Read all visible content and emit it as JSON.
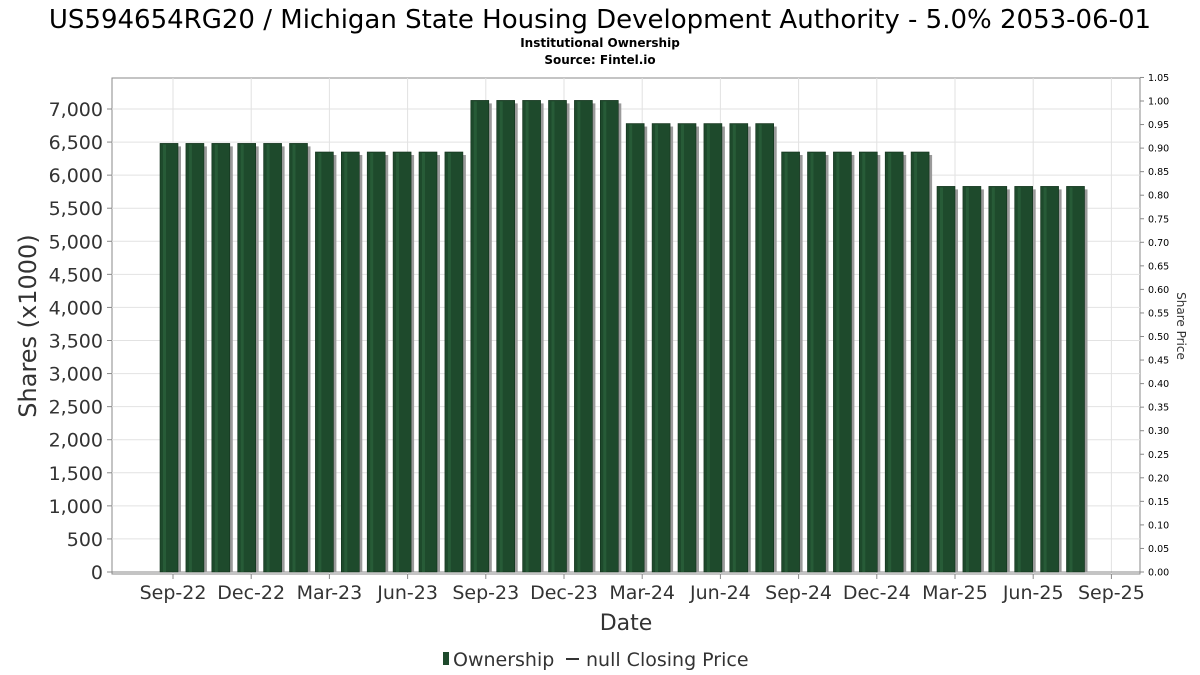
{
  "chart_data": {
    "type": "bar",
    "title": "US594654RG20 / Michigan State Housing Development Authority - 5.0% 2053-06-01",
    "subtitle": "Institutional Ownership",
    "source": "Source: Fintel.io",
    "xlabel": "Date",
    "ylabel": "Shares (x1000)",
    "y2label": "Share Price",
    "ylim": [
      0,
      7250
    ],
    "y2lim": [
      0,
      1.05
    ],
    "y_ticks": [
      0,
      500,
      1000,
      1500,
      2000,
      2500,
      3000,
      3500,
      4000,
      4500,
      5000,
      5500,
      6000,
      6500,
      7000
    ],
    "y_tick_labels": [
      "0",
      "500",
      "1,000",
      "1,500",
      "2,000",
      "2,500",
      "3,000",
      "3,500",
      "4,000",
      "4,500",
      "5,000",
      "5,500",
      "6,000",
      "6,500",
      "7,000"
    ],
    "y2_ticks": [
      0,
      0.05,
      0.1,
      0.15,
      0.2,
      0.25,
      0.3,
      0.35,
      0.4,
      0.45,
      0.5,
      0.55,
      0.6,
      0.65,
      0.7,
      0.75,
      0.8,
      0.85,
      0.9,
      0.95,
      1.0,
      1.05
    ],
    "y2_tick_labels": [
      "0.00",
      "0.05",
      "0.10",
      "0.15",
      "0.20",
      "0.25",
      "0.30",
      "0.35",
      "0.40",
      "0.45",
      "0.50",
      "0.55",
      "0.60",
      "0.65",
      "0.70",
      "0.75",
      "0.80",
      "0.85",
      "0.90",
      "0.95",
      "1.00",
      "1.05"
    ],
    "x_tick_labels": [
      "Sep-22",
      "Dec-22",
      "Mar-23",
      "Jun-23",
      "Sep-23",
      "Dec-23",
      "Mar-24",
      "Jun-24",
      "Sep-24",
      "Dec-24",
      "Mar-25",
      "Jun-25",
      "Sep-25"
    ],
    "grid": true,
    "legend_position": "bottom",
    "series": [
      {
        "name": "Ownership",
        "color": "#1e4a2c",
        "values": [
          6480,
          6480,
          6480,
          6480,
          6480,
          6480,
          6350,
          6350,
          6350,
          6350,
          6350,
          6350,
          7130,
          7130,
          7130,
          7130,
          7130,
          7130,
          6780,
          6780,
          6780,
          6780,
          6780,
          6780,
          6350,
          6350,
          6350,
          6350,
          6350,
          6350,
          5830,
          5830,
          5830,
          5830,
          5830,
          5830
        ]
      }
    ],
    "legend": [
      {
        "label": "Ownership",
        "kind": "bar",
        "color": "#1e4a2c"
      },
      {
        "label": "null Closing Price",
        "kind": "line",
        "color": "#333333"
      }
    ]
  }
}
